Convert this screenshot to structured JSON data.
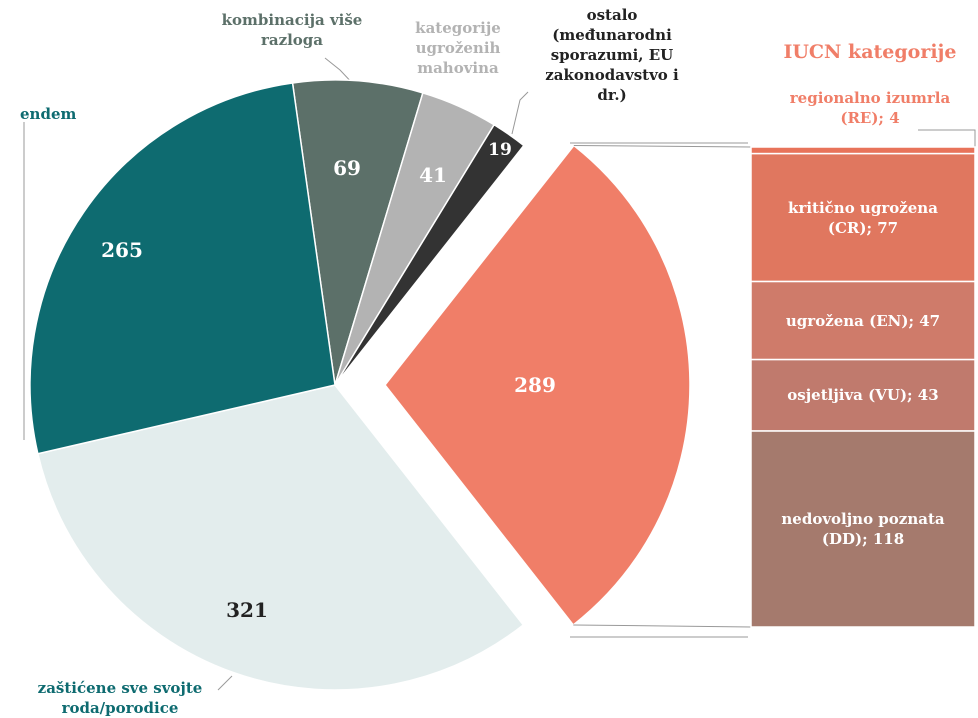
{
  "chart_data": {
    "type": "pie-of-bar",
    "categories": [
      "kombinacija više razloga",
      "kategorije ugroženih mahovina",
      "ostalo (međunarodni sporazumi, EU zakonodavstvo i dr.)",
      "IUCN kategorije",
      "zaštićene sve svojte roda/porodice",
      "endem"
    ],
    "values": [
      69,
      41,
      19,
      289,
      321,
      265
    ],
    "colors": [
      "#5c7069",
      "#b3b3b3",
      "#333333",
      "#f07e68",
      "#e3eded",
      "#0e6b70"
    ],
    "exploded": 3,
    "bar": {
      "categories": [
        "regionalno izumrla (RE); 4",
        "kritično ugrožena (CR); 77",
        "ugrožena (EN); 47",
        "osjetljiva (VU); 43",
        "nedovoljno poznata (DD); 118"
      ],
      "values": [
        4,
        77,
        47,
        43,
        118
      ],
      "colors": [
        "#e8735a",
        "#e0775f",
        "#cf7b6a",
        "#c07a6d",
        "#a57a6d"
      ]
    }
  }
}
